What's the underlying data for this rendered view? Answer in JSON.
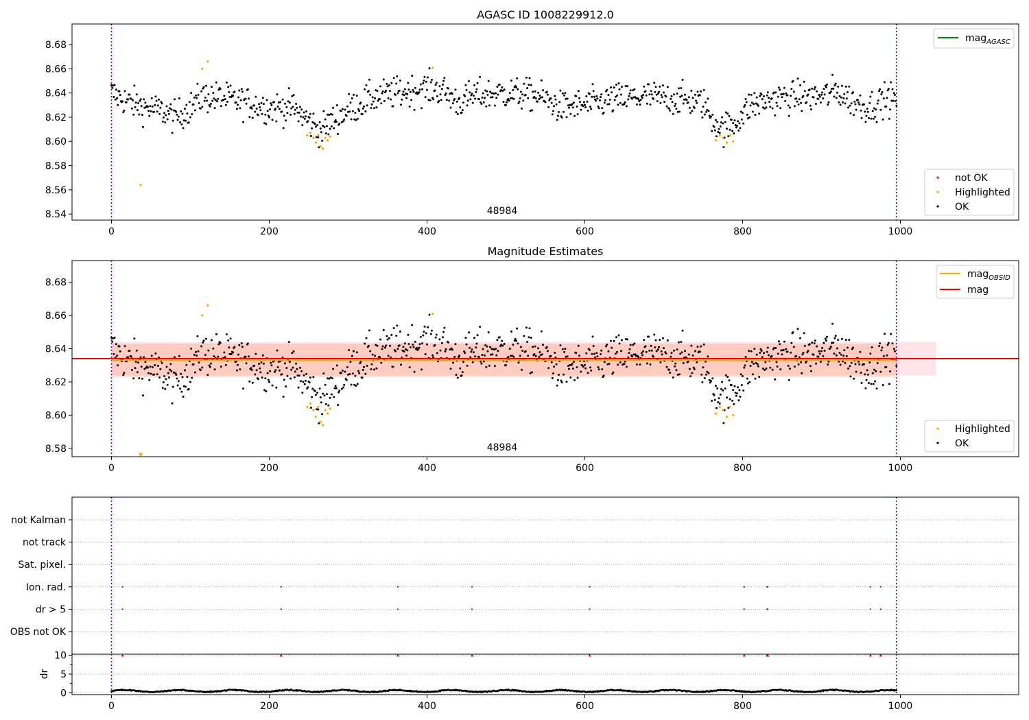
{
  "figure": {
    "background": "#ffffff"
  },
  "colors": {
    "ok": "#000000",
    "highlighted": "#ffa500",
    "not_ok": "#ff0000",
    "agasc_line": "#008000",
    "obsid_line": "#ffa500",
    "mag_line": "#ff0000",
    "obs_boundary": "#800080",
    "mag_band": "#ffc0cb",
    "obsid_band": "#ffa07a"
  },
  "chart_data": [
    {
      "type": "scatter",
      "title": "AGASC ID 1008229912.0",
      "obsid_label": "48984",
      "xlim": [
        -50,
        1150
      ],
      "ylim": [
        8.535,
        8.697
      ],
      "xticks": [
        0,
        200,
        400,
        600,
        800,
        1000
      ],
      "yticks": [
        8.54,
        8.56,
        8.58,
        8.6,
        8.62,
        8.64,
        8.66,
        8.68
      ],
      "obs_boundaries": [
        0,
        995
      ],
      "legend_lines": [
        {
          "name": "mag",
          "subscript": "AGASC",
          "color": "#008000"
        }
      ],
      "legend_markers": [
        {
          "name": "not OK",
          "color": "#ff0000"
        },
        {
          "name": "Highlighted",
          "color": "#ffa500"
        },
        {
          "name": "OK",
          "color": "#000000"
        }
      ],
      "series": [
        {
          "name": "OK",
          "baseline": [
            [
              0,
              8.64
            ],
            [
              20,
              8.633
            ],
            [
              45,
              8.628
            ],
            [
              65,
              8.625
            ],
            [
              80,
              8.62
            ],
            [
              100,
              8.628
            ],
            [
              115,
              8.637
            ],
            [
              140,
              8.636
            ],
            [
              170,
              8.632
            ],
            [
              200,
              8.628
            ],
            [
              230,
              8.628
            ],
            [
              250,
              8.617
            ],
            [
              265,
              8.609
            ],
            [
              280,
              8.617
            ],
            [
              300,
              8.626
            ],
            [
              330,
              8.636
            ],
            [
              360,
              8.64
            ],
            [
              380,
              8.642
            ],
            [
              400,
              8.644
            ],
            [
              420,
              8.642
            ],
            [
              440,
              8.632
            ],
            [
              460,
              8.638
            ],
            [
              500,
              8.64
            ],
            [
              540,
              8.638
            ],
            [
              570,
              8.628
            ],
            [
              600,
              8.63
            ],
            [
              640,
              8.635
            ],
            [
              680,
              8.637
            ],
            [
              720,
              8.635
            ],
            [
              750,
              8.632
            ],
            [
              760,
              8.62
            ],
            [
              775,
              8.61
            ],
            [
              790,
              8.615
            ],
            [
              810,
              8.63
            ],
            [
              840,
              8.635
            ],
            [
              870,
              8.637
            ],
            [
              900,
              8.637
            ],
            [
              920,
              8.642
            ],
            [
              940,
              8.633
            ],
            [
              960,
              8.628
            ],
            [
              980,
              8.635
            ],
            [
              995,
              8.635
            ]
          ]
        },
        {
          "name": "Highlighted",
          "points": [
            [
              37,
              8.564
            ],
            [
              115,
              8.66
            ],
            [
              122,
              8.666
            ],
            [
              248,
              8.605
            ],
            [
              252,
              8.607
            ],
            [
              256,
              8.603
            ],
            [
              259,
              8.599
            ],
            [
              262,
              8.605
            ],
            [
              265,
              8.596
            ],
            [
              268,
              8.594
            ],
            [
              271,
              8.603
            ],
            [
              274,
              8.601
            ],
            [
              277,
              8.604
            ],
            [
              407,
              8.661
            ],
            [
              766,
              8.601
            ],
            [
              771,
              8.605
            ],
            [
              775,
              8.603
            ],
            [
              780,
              8.599
            ],
            [
              784,
              8.605
            ],
            [
              788,
              8.6
            ]
          ]
        }
      ]
    },
    {
      "type": "scatter",
      "title": "Magnitude Estimates",
      "obsid_label": "48984",
      "xlim": [
        -50,
        1150
      ],
      "ylim": [
        8.575,
        8.693
      ],
      "xticks": [
        0,
        200,
        400,
        600,
        800,
        1000
      ],
      "yticks": [
        8.58,
        8.6,
        8.62,
        8.64,
        8.66,
        8.68
      ],
      "obs_boundaries": [
        0,
        995
      ],
      "mag": 8.634,
      "mag_band": [
        8.624,
        8.644
      ],
      "mag_obsid": 8.633,
      "mag_obsid_band": [
        8.623,
        8.643
      ],
      "mag_obsid_range": [
        0,
        995
      ],
      "band_xrange": [
        0,
        1045
      ],
      "legend_lines": [
        {
          "name": "mag",
          "subscript": "OBSID",
          "color": "#ffa500"
        },
        {
          "name": "mag",
          "subscript": "",
          "color": "#ff0000"
        }
      ],
      "legend_markers": [
        {
          "name": "Highlighted",
          "color": "#ffa500"
        },
        {
          "name": "OK",
          "color": "#000000"
        }
      ],
      "clipped_point": [
        37,
        8.576
      ]
    },
    {
      "type": "scatter",
      "categories": [
        "not Kalman",
        "not track",
        "Sat. pixel.",
        "Ion. rad.",
        "dr > 5",
        "OBS not OK"
      ],
      "flag_points": {
        "Ion. rad.": [
          14,
          215,
          363,
          457,
          606,
          802,
          831,
          832,
          962,
          975
        ],
        "dr > 5": [
          14,
          215,
          363,
          457,
          606,
          802,
          831,
          832,
          962,
          975
        ]
      },
      "xlim": [
        -50,
        1150
      ],
      "obs_boundaries": [
        0,
        995
      ]
    },
    {
      "type": "scatter",
      "ylabel": "dr",
      "ylim": [
        -0.5,
        10.3
      ],
      "yticks": [
        0,
        5,
        10
      ],
      "xlim": [
        -50,
        1150
      ],
      "xticks": [
        0,
        200,
        400,
        600,
        800,
        1000
      ],
      "obs_boundaries": [
        0,
        995
      ],
      "clipped_x": [
        14,
        215,
        363,
        457,
        606,
        802,
        831,
        832,
        962,
        975
      ]
    }
  ]
}
